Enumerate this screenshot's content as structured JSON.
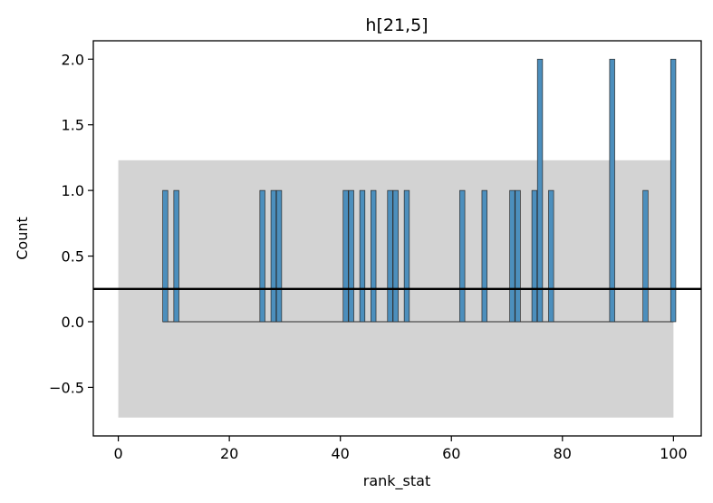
{
  "chart_data": {
    "type": "bar",
    "title": "h[21,5]",
    "xlabel": "rank_stat",
    "ylabel": "Count",
    "xlim": [
      -4.5,
      105
    ],
    "ylim": [
      -0.87,
      2.14
    ],
    "xticks": [
      0,
      20,
      40,
      60,
      80,
      100
    ],
    "yticks": [
      -0.5,
      0.0,
      0.5,
      1.0,
      1.5,
      2.0
    ],
    "xtick_labels": [
      "0",
      "20",
      "40",
      "60",
      "80",
      "100"
    ],
    "ytick_labels": [
      "−0.5",
      "0.0",
      "0.5",
      "1.0",
      "1.5",
      "2.0"
    ],
    "bin_range": [
      8,
      100
    ],
    "bin_width": 0.92,
    "bars": [
      {
        "x": 8.0,
        "count": 1
      },
      {
        "x": 10.0,
        "count": 1
      },
      {
        "x": 25.5,
        "count": 1
      },
      {
        "x": 27.5,
        "count": 1
      },
      {
        "x": 28.5,
        "count": 1
      },
      {
        "x": 40.5,
        "count": 1
      },
      {
        "x": 41.5,
        "count": 1
      },
      {
        "x": 43.5,
        "count": 1
      },
      {
        "x": 45.5,
        "count": 1
      },
      {
        "x": 48.5,
        "count": 1
      },
      {
        "x": 49.5,
        "count": 1
      },
      {
        "x": 51.5,
        "count": 1
      },
      {
        "x": 61.5,
        "count": 1
      },
      {
        "x": 65.5,
        "count": 1
      },
      {
        "x": 70.5,
        "count": 1
      },
      {
        "x": 71.5,
        "count": 1
      },
      {
        "x": 74.5,
        "count": 1
      },
      {
        "x": 75.5,
        "count": 2
      },
      {
        "x": 77.5,
        "count": 1
      },
      {
        "x": 88.5,
        "count": 2
      },
      {
        "x": 94.5,
        "count": 1
      },
      {
        "x": 99.5,
        "count": 2
      }
    ],
    "reference_band": {
      "x": [
        0,
        100
      ],
      "y": [
        -0.73,
        1.23
      ],
      "color": "#d3d3d3"
    },
    "reference_line": {
      "y": 0.25,
      "color": "#000000"
    },
    "bar_color": "#4c8fbd",
    "bar_edge_color": "#2b2b2b",
    "grid": false,
    "legend": false
  }
}
